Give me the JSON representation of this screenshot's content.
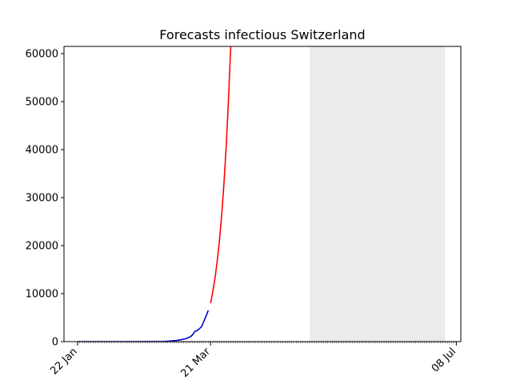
{
  "chart_data": {
    "type": "line",
    "title": "Forecasts infectious Switzerland",
    "xlabel": "",
    "ylabel": "",
    "x_start": "2020-01-22",
    "x_end": "2020-07-08",
    "xlim": [
      "2020-01-16",
      "2020-07-10"
    ],
    "ylim": [
      0,
      61500
    ],
    "yticks": [
      0,
      10000,
      20000,
      30000,
      40000,
      50000,
      60000
    ],
    "ytick_labels": [
      "0",
      "10000",
      "20000",
      "30000",
      "40000",
      "50000",
      "60000"
    ],
    "xtick_labels": [
      {
        "date": "2020-01-22",
        "label": "22 Jan"
      },
      {
        "date": "2020-03-21",
        "label": "21 Mar"
      },
      {
        "date": "2020-07-08",
        "label": "08 Jul"
      }
    ],
    "shaded_region": {
      "from": "2020-05-04",
      "to": "2020-07-03",
      "color": "#ebebeb"
    },
    "grid": false,
    "series": [
      {
        "color": "#0000cc",
        "points": [
          [
            "2020-01-22",
            0
          ],
          [
            "2020-02-10",
            0
          ],
          [
            "2020-02-25",
            15
          ],
          [
            "2020-02-29",
            30
          ],
          [
            "2020-03-02",
            80
          ],
          [
            "2020-03-04",
            150
          ],
          [
            "2020-03-06",
            250
          ],
          [
            "2020-03-08",
            400
          ],
          [
            "2020-03-10",
            600
          ],
          [
            "2020-03-12",
            1000
          ],
          [
            "2020-03-13",
            1400
          ],
          [
            "2020-03-14",
            2100
          ],
          [
            "2020-03-15",
            2300
          ],
          [
            "2020-03-16",
            2650
          ],
          [
            "2020-03-17",
            3100
          ],
          [
            "2020-03-18",
            4200
          ],
          [
            "2020-03-19",
            5300
          ],
          [
            "2020-03-20",
            6500
          ]
        ]
      },
      {
        "color": "#ff0000",
        "points": [
          [
            "2020-03-21",
            8000
          ],
          [
            "2020-03-22",
            10400
          ],
          [
            "2020-03-23",
            13300
          ],
          [
            "2020-03-24",
            16900
          ],
          [
            "2020-03-25",
            21300
          ],
          [
            "2020-03-26",
            26700
          ],
          [
            "2020-03-27",
            33300
          ],
          [
            "2020-03-28",
            41200
          ],
          [
            "2020-03-29",
            50800
          ],
          [
            "2020-03-30",
            62000
          ]
        ]
      }
    ]
  }
}
